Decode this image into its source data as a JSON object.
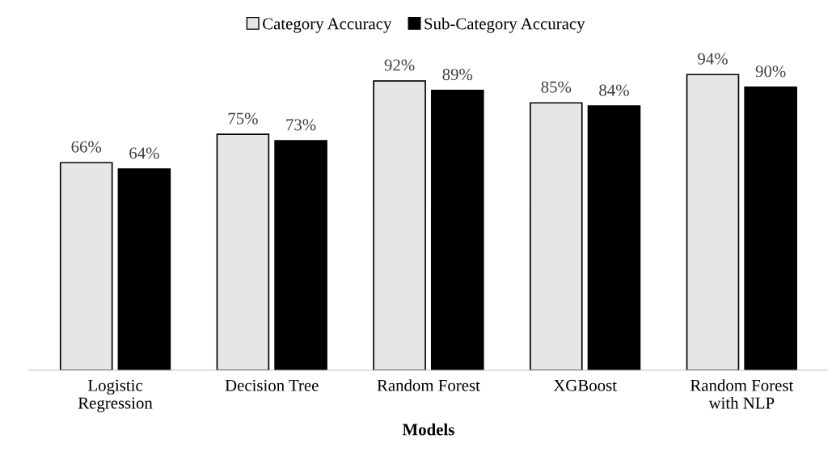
{
  "chart_data": {
    "type": "bar",
    "xlabel": "Models",
    "categories": [
      "Logistic\nRegression",
      "Decision Tree",
      "Random Forest",
      "XGBoost",
      "Random Forest\nwith NLP"
    ],
    "series": [
      {
        "name": "Category Accuracy",
        "color": "#e7e6e6",
        "values": [
          66,
          75,
          92,
          85,
          94
        ],
        "value_labels": [
          "66%",
          "75%",
          "92%",
          "85%",
          "94%"
        ]
      },
      {
        "name": "Sub-Category Accuracy",
        "color": "#000000",
        "values": [
          64,
          73,
          89,
          84,
          90
        ],
        "value_labels": [
          "64%",
          "73%",
          "89%",
          "84%",
          "90%"
        ]
      }
    ],
    "legend": "top",
    "grid": false,
    "tick_labels": "x"
  }
}
